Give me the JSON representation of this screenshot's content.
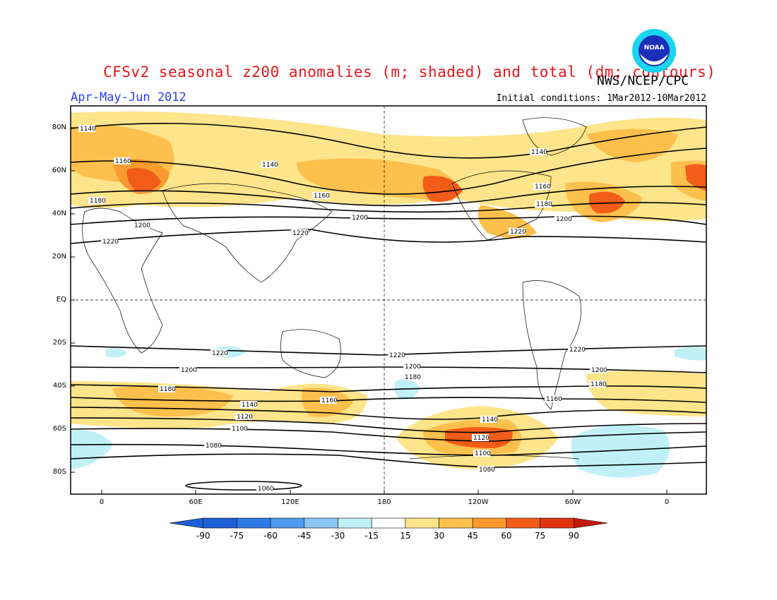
{
  "title": "CFSv2 seasonal z200 anomalies (m; shaded) and total (dm; contours)",
  "credit": "NWS/NCEP/CPC",
  "season": "Apr-May-Jun 2012",
  "initial_conditions": "Initial conditions: 1Mar2012-10Mar2012",
  "logo": {
    "text": "NOAA",
    "colors": {
      "outer": "#1ad3ef",
      "inner": "#1b2fb8"
    }
  },
  "lat_labels": [
    "80N",
    "60N",
    "40N",
    "20N",
    "EQ",
    "20S",
    "40S",
    "60S",
    "80S"
  ],
  "lon_labels": [
    "0",
    "60E",
    "120E",
    "180",
    "120W",
    "60W",
    "0"
  ],
  "colorbar": {
    "labels": [
      "-90",
      "-75",
      "-60",
      "-45",
      "-30",
      "-15",
      "15",
      "30",
      "45",
      "60",
      "75",
      "90"
    ],
    "colors": [
      "#1f5fd8",
      "#2f7be6",
      "#4f99ee",
      "#8cc6f5",
      "#bff0f6",
      "#ffffff",
      "#fee48a",
      "#fdc04d",
      "#fb9a2e",
      "#f25c19",
      "#e03412",
      "#c41a0b"
    ]
  },
  "contour_labels": {
    "c1140a": "1140",
    "c1140b": "1140",
    "c1140c": "1140",
    "c1160a": "1160",
    "c1160b": "1160",
    "c1160c": "1160",
    "c1180a": "1180",
    "c1180b": "1180",
    "c1200a": "1200",
    "c1200b": "1200",
    "c1200c": "1200",
    "c1220a": "1220",
    "c1220b": "1220",
    "c1220c": "1220",
    "s1220a": "1220",
    "s1220b": "1220",
    "s1220c": "1220",
    "s1200a": "1200",
    "s1200b": "1200",
    "s1200c": "1200",
    "s1180a": "1180",
    "s1180b": "1180",
    "s1180c": "1180",
    "s1160a": "1160",
    "s1160b": "1160",
    "s1140a": "1140",
    "s1140b": "1140",
    "s1120a": "1120",
    "s1120b": "1120",
    "s1100a": "1100",
    "s1100b": "1100",
    "s1080a": "1080",
    "s1080b": "1080",
    "s1060": "1060"
  }
}
